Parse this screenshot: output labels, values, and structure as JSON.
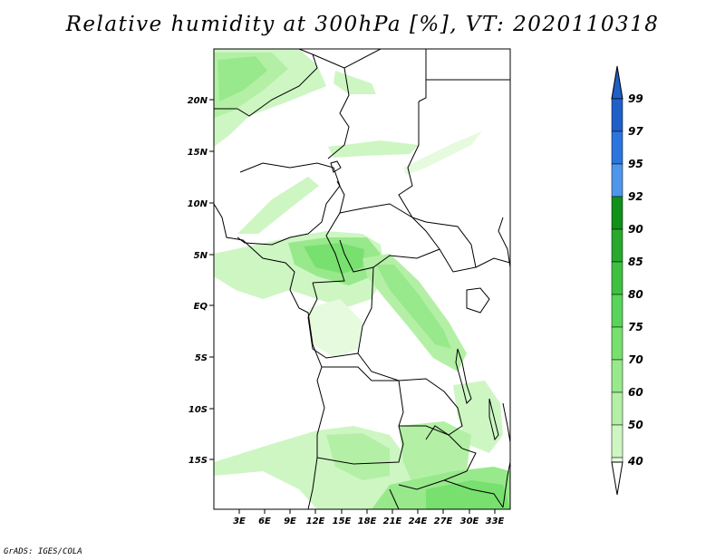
{
  "title": "Relative humidity at 300hPa [%], VT: 2020110318",
  "credit": "GrADS: IGES/COLA",
  "map": {
    "lon_labels": [
      "3E",
      "6E",
      "9E",
      "12E",
      "15E",
      "18E",
      "21E",
      "24E",
      "27E",
      "30E",
      "33E"
    ],
    "lat_labels": [
      "20N",
      "15N",
      "10N",
      "5N",
      "EQ",
      "5S",
      "10S",
      "15S"
    ]
  },
  "colorbar": {
    "levels": [
      "99",
      "97",
      "95",
      "92",
      "90",
      "85",
      "80",
      "75",
      "70",
      "60",
      "50",
      "40"
    ],
    "colors": [
      "#1f5fc8",
      "#2b75dc",
      "#4f96ea",
      "#11901a",
      "#29a82d",
      "#3fc040",
      "#58d45a",
      "#78e06e",
      "#98e98b",
      "#b3f0a5",
      "#cdf6c3",
      "#e6fbde"
    ],
    "under_color": "#ffffff"
  },
  "humidity_field": {
    "variable": "Relative humidity",
    "level": "300hPa",
    "unit": "%",
    "valid_time": "2020110318"
  }
}
